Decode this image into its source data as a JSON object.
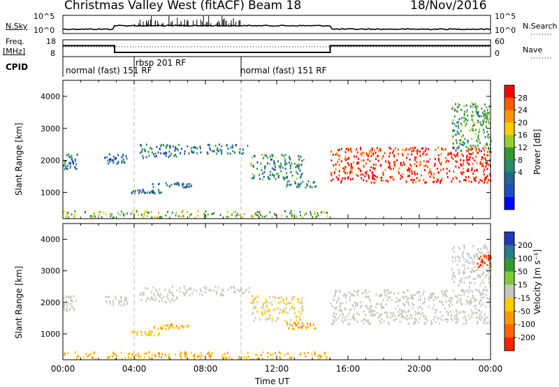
{
  "header": {
    "station": "Christmas Valley West (fitACF)",
    "beam": "Beam 18",
    "date": "18/Nov/2016"
  },
  "top_panels": {
    "nsky_label": "N.Sky",
    "nsky_ticks": [
      "10^5",
      "10^0"
    ],
    "nsearch_label": "N.Search",
    "nsearch_ticks": [
      "10^5",
      "10^0"
    ],
    "freq_label": "Freq.",
    "freq_unit": "[MHz]",
    "freq_ticks": [
      18,
      8
    ],
    "nave_label": "Nave",
    "nave_ticks": [
      60,
      0
    ],
    "cpid_label": "CPID",
    "cpid_segments": [
      {
        "label": "normal (fast) 151 RF",
        "start": 0,
        "end": 4
      },
      {
        "label": "rbsp 201 RF",
        "start": 4,
        "end": 10
      },
      {
        "label": "normal (fast) 151 RF",
        "start": 10,
        "end": 24
      }
    ]
  },
  "axes": {
    "ylabel": "Slant Range [km]",
    "xlabel": "Time UT",
    "xticks": [
      "00:00",
      "04:00",
      "08:00",
      "12:00",
      "16:00",
      "20:00",
      "00:00"
    ],
    "yticks": [
      1000,
      2000,
      3000,
      4000
    ]
  },
  "colorbars": {
    "power": {
      "label": "Power [dB]",
      "ticks": [
        "28",
        "24",
        "20",
        "16",
        "12",
        "8",
        "4"
      ],
      "colors": [
        "#ff0000",
        "#ff5a00",
        "#ff9600",
        "#ffcc00",
        "#99cc33",
        "#339933",
        "#2a8a6a",
        "#2a6090",
        "#1e4fc0",
        "#0000ff"
      ]
    },
    "velocity": {
      "label": "Velocity [m s⁻¹]",
      "ticks": [
        "200",
        "100",
        "50",
        "15",
        "-15",
        "-50",
        "-100",
        "-200"
      ],
      "colors": [
        "#2338b8",
        "#2a7a8a",
        "#339933",
        "#7ccc3a",
        "#c8c8c0",
        "#ffcc00",
        "#ff9900",
        "#ff6600",
        "#ff2200"
      ]
    }
  },
  "chart_data": {
    "type": "heatmap",
    "title": "Christmas Valley West (fitACF) Beam 18 18/Nov/2016",
    "xlabel": "Time UT",
    "ylabel": "Slant Range [km]",
    "xlim": [
      0,
      24
    ],
    "ylim": [
      180,
      4500
    ],
    "freq_mhz": [
      {
        "start": 0,
        "end": 2.9,
        "value": 14.5
      },
      {
        "start": 2.9,
        "end": 15.0,
        "value": 10.5
      },
      {
        "start": 15.0,
        "end": 24,
        "value": 14.5
      }
    ],
    "nave": 35,
    "echo_regions": [
      {
        "t_start": 0.0,
        "t_end": 0.8,
        "r_min": 1700,
        "r_max": 2200,
        "power_db": 8,
        "velocity": 0
      },
      {
        "t_start": 2.3,
        "t_end": 3.6,
        "r_min": 1900,
        "r_max": 2200,
        "power_db": 6,
        "velocity": 0
      },
      {
        "t_start": 4.3,
        "t_end": 6.5,
        "r_min": 2000,
        "r_max": 2500,
        "power_db": 8,
        "velocity": 0
      },
      {
        "t_start": 6.5,
        "t_end": 10.5,
        "r_min": 2200,
        "r_max": 2500,
        "power_db": 9,
        "velocity": 0
      },
      {
        "t_start": 10.5,
        "t_end": 13.5,
        "r_min": 1400,
        "r_max": 2200,
        "power_db": 10,
        "velocity": -15
      },
      {
        "t_start": 12.5,
        "t_end": 14.2,
        "r_min": 1150,
        "r_max": 1350,
        "power_db": 10,
        "velocity": -60
      },
      {
        "t_start": 5.0,
        "t_end": 7.2,
        "r_min": 1150,
        "r_max": 1300,
        "power_db": 8,
        "velocity": -50
      },
      {
        "t_start": 3.8,
        "t_end": 5.5,
        "r_min": 950,
        "r_max": 1080,
        "power_db": 8,
        "velocity": -20
      },
      {
        "t_start": 0.0,
        "t_end": 15.0,
        "r_min": 200,
        "r_max": 420,
        "power_db": 14,
        "velocity": -50
      },
      {
        "t_start": 15.0,
        "t_end": 24.0,
        "r_min": 1300,
        "r_max": 2400,
        "power_db": 28,
        "velocity": 0
      },
      {
        "t_start": 21.8,
        "t_end": 24.0,
        "r_min": 2300,
        "r_max": 3800,
        "power_db": 12,
        "velocity": 0
      },
      {
        "t_start": 23.2,
        "t_end": 24.0,
        "r_min": 3100,
        "r_max": 3500,
        "power_db": 12,
        "velocity": -200
      }
    ]
  }
}
